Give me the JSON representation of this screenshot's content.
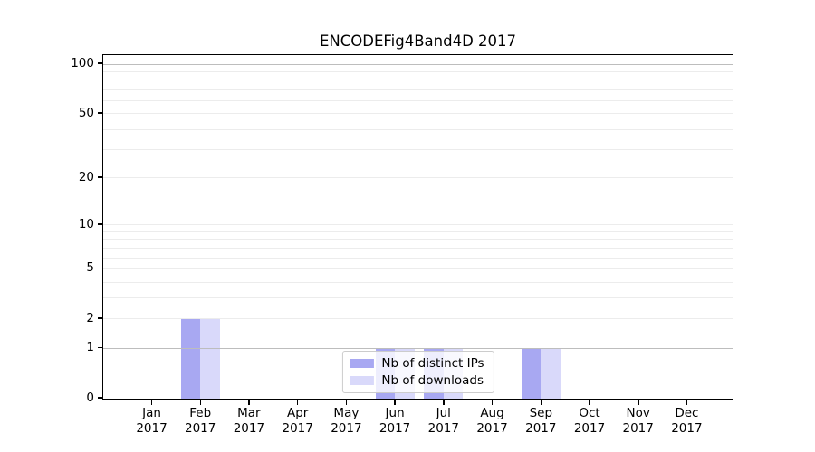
{
  "title": "ENCODEFig4Band4D 2017",
  "chart_data": {
    "type": "bar",
    "title": "ENCODEFig4Band4D 2017",
    "x": [
      "Jan 2017",
      "Feb 2017",
      "Mar 2017",
      "Apr 2017",
      "May 2017",
      "Jun 2017",
      "Jul 2017",
      "Aug 2017",
      "Sep 2017",
      "Oct 2017",
      "Nov 2017",
      "Dec 2017"
    ],
    "month_labels": [
      {
        "month": "Jan",
        "year": "2017"
      },
      {
        "month": "Feb",
        "year": "2017"
      },
      {
        "month": "Mar",
        "year": "2017"
      },
      {
        "month": "Apr",
        "year": "2017"
      },
      {
        "month": "May",
        "year": "2017"
      },
      {
        "month": "Jun",
        "year": "2017"
      },
      {
        "month": "Jul",
        "year": "2017"
      },
      {
        "month": "Aug",
        "year": "2017"
      },
      {
        "month": "Sep",
        "year": "2017"
      },
      {
        "month": "Oct",
        "year": "2017"
      },
      {
        "month": "Nov",
        "year": "2017"
      },
      {
        "month": "Dec",
        "year": "2017"
      }
    ],
    "series": [
      {
        "name": "Nb of distinct IPs",
        "color": "#a8a8f2",
        "values": [
          0,
          2,
          0,
          0,
          0,
          1,
          1,
          0,
          1,
          0,
          0,
          0
        ]
      },
      {
        "name": "Nb of downloads",
        "color": "#d9d9fa",
        "values": [
          0,
          2,
          0,
          0,
          0,
          1,
          1,
          0,
          1,
          0,
          0,
          0
        ]
      }
    ],
    "yscale": "log10(1+x)",
    "ylim": [
      0,
      112
    ],
    "y_tick_labels": [
      100,
      50,
      20,
      10,
      5,
      2,
      1,
      0
    ],
    "y_strong_gridlines": [
      1,
      100
    ],
    "y_light_gridlines": [
      2,
      3,
      4,
      5,
      6,
      7,
      8,
      9,
      10,
      20,
      30,
      40,
      50,
      60,
      70,
      80,
      90
    ],
    "grid": true,
    "legend_position": "lower center"
  },
  "legend": {
    "items": [
      {
        "label": "Nb of distinct IPs",
        "color": "#a8a8f2"
      },
      {
        "label": "Nb of downloads",
        "color": "#d9d9fa"
      }
    ]
  },
  "colors": {
    "bar_distinct_ips": "#a8a8f2",
    "bar_downloads": "#d9d9fa",
    "grid_strong": "#bdbdbd",
    "grid_light": "#ececec",
    "spine": "#000000",
    "legend_border": "#cccccc"
  }
}
